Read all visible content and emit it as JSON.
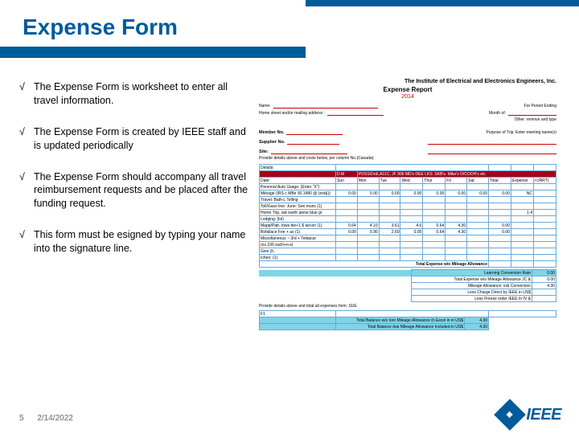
{
  "title": "Expense Form",
  "bullets": [
    "The Expense Form is worksheet to enter all travel information.",
    "The Expense Form is created by IEEE staff and is updated periodically",
    "The Expense Form should accompany all travel reimbursement requests and be placed after the funding request.",
    "This form must be esigned by typing your name into the signature line."
  ],
  "check_glyph": "√",
  "footer": {
    "page": "5",
    "date": "2/14/2022"
  },
  "logo": {
    "text": "IEEE"
  },
  "colors": {
    "brand": "#005b9a",
    "form_red": "#c00000",
    "form_grid": "#6aa8d8",
    "form_highlight_dark": "#a6001a",
    "form_highlight_cyan": "#7fd4e6"
  },
  "report": {
    "org": "The Institute of Electrical and Electronics Engineers, Inc.",
    "title": "Expense Report",
    "year": "2014",
    "top_fields": {
      "name": "Name:",
      "address": "Home street and/or mailing address :",
      "period": "For Period Ending",
      "month": "Month of:",
      "other": "Other: remove and type"
    },
    "mid_fields": {
      "member": "Member No.",
      "supplier": "Supplier No.",
      "site": "Site:",
      "purpose": "Purpose of Trip: Enter meeting name(s)"
    },
    "instr": "Provide details above and costs below, per column No.(Canada):",
    "detail_label": "Details:",
    "red_header": [
      "",
      "D.M",
      "POSS/DoE,A11C, JF 906 MD's DEE LKS. SKB's. Mike's O/COOH's etc"
    ],
    "day_labels": [
      "Date:",
      "Sun",
      "Mon",
      "Tue",
      "Wed",
      "Thur",
      "Fri",
      "Sat",
      "Total",
      "Expense",
      "n:/RRT)"
    ],
    "expense_rows": [
      {
        "label": "Personal Auto Usage: (Enter \"X\")",
        "vals": [
          "",
          "",
          "",
          "",
          "",
          "",
          "",
          "",
          ""
        ]
      },
      {
        "label": "Mileage (IRS c MBe 90.1480 @ (ext&))",
        "vals": [
          "0.00",
          "0.00",
          "0.00",
          "0.00",
          "0.00",
          "0.00",
          "0.00",
          "0.00",
          "NC"
        ]
      },
      {
        "label": "Travel: Bath-L Telling",
        "vals": [
          "",
          "",
          "",
          "",
          "",
          "",
          "",
          "",
          ""
        ]
      },
      {
        "label": "Toll/Gaso line: June: See muns (1)",
        "vals": [
          "",
          "",
          "",
          "",
          "",
          "",
          "",
          "",
          ""
        ]
      },
      {
        "label": "Home Trip, aid oveth aiene blue gr",
        "vals": [
          "",
          "",
          "",
          "",
          "",
          "",
          "",
          "",
          "1.4"
        ]
      },
      {
        "label": "Lodging: (lol)",
        "vals": [
          "",
          "",
          "",
          "",
          "",
          "",
          "",
          "",
          ""
        ]
      },
      {
        "label": "Mapp/Patt..rows ble+1 $ larcon (1)",
        "vals": [
          "0.64",
          "4.10",
          "3.61",
          "4.6",
          "0.64",
          "4.30",
          "",
          "0.00",
          ""
        ]
      },
      {
        "label": "Bofallace Fee + as (1)",
        "vals": [
          "0.00",
          "0.90",
          "2.60",
          "0.00",
          "0.64",
          "4.30",
          "",
          "0.00",
          ""
        ]
      },
      {
        "label": "Miscellaneous ~ 3rd + Telepcar",
        "vals": [
          "",
          "",
          "",
          "",
          "",
          "",
          "",
          "",
          ""
        ]
      },
      {
        "label": "(ex.100 each+n-s)",
        "vals": [
          "",
          "",
          "",
          "",
          "",
          "",
          "",
          "",
          ""
        ]
      },
      {
        "label": "Give (ll..",
        "vals": [
          "",
          "",
          "",
          "",
          "",
          "",
          "",
          "",
          ""
        ]
      },
      {
        "label": "Icheo: (1)",
        "vals": [
          "",
          "",
          "",
          "",
          "",
          "",
          "",
          "",
          ""
        ]
      }
    ],
    "subtotal_label": "Total Expense w/o Mileage Allowance",
    "summary": [
      {
        "label": "Learning Conversion Rate",
        "val": "0.00"
      },
      {
        "label": "Total Expense w/o Mileage Allowance JC &",
        "val": "0.00"
      },
      {
        "label": "Mileage Allowance: in& Conversion",
        "val": "4.30"
      },
      {
        "label": "Less Charge Direct by IEEE in US$",
        "val": ""
      },
      {
        "label": "Less Freeze order IEEE In IV &",
        "val": ""
      }
    ],
    "note": "Provide details above and total all expenses Item: SUE",
    "balance_rows": [
      {
        "label": "Total Balance w/o loro Mileage Allowance (n Excel in in US$",
        "val": "4.30"
      },
      {
        "label": "Total Balance due Mileage Allowance Included in US$",
        "val": "4.30"
      }
    ],
    "sig_label": "F1"
  }
}
